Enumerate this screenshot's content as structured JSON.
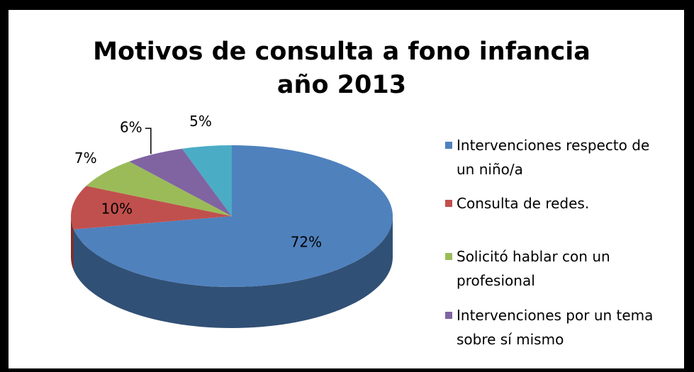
{
  "chart_data": {
    "type": "pie",
    "title": "Motivos de consulta a fono infancia año 2013",
    "categories": [
      "Intervenciones respecto de un niño/a",
      "Consulta de redes.",
      "Solicitó hablar con un profesional",
      "Intervenciones por un tema sobre sí mismo",
      null
    ],
    "values": [
      72,
      10,
      7,
      6,
      5
    ],
    "value_labels": [
      "72%",
      "10%",
      "7%",
      "6%",
      "5%"
    ],
    "colors": [
      "#4f81bd",
      "#c0504d",
      "#9bbb59",
      "#8064a2",
      "#4bacc6"
    ],
    "legend": "right"
  }
}
